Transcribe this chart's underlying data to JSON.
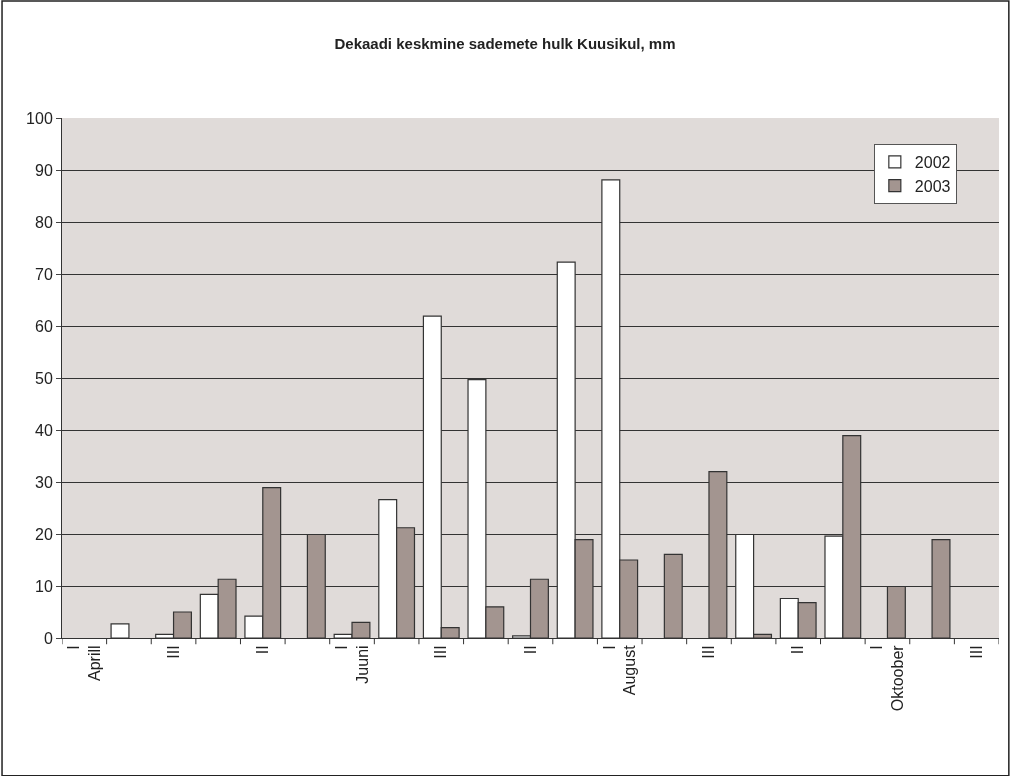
{
  "chart_data": {
    "type": "bar",
    "title": "Dekaadi keskmine sademete hulk Kuusikul, mm",
    "categories": [
      "I\nAprill",
      null,
      "III",
      null,
      "II",
      null,
      "I\nJuuni",
      null,
      "III",
      null,
      "II",
      null,
      "I\nAugust",
      null,
      "III",
      null,
      "II",
      null,
      "I\nOktoober",
      null,
      "III"
    ],
    "series": [
      {
        "name": "2002",
        "color": "#ffffff",
        "values": [
          null,
          2.7,
          0.7,
          8.4,
          4.2,
          null,
          0.7,
          26.6,
          61.9,
          49.7,
          0.4,
          72.3,
          88.1,
          null,
          null,
          19.9,
          7.6,
          19.6,
          null,
          null,
          null
        ]
      },
      {
        "name": "2003",
        "color": "#a39590",
        "values": [
          null,
          null,
          5.0,
          11.3,
          28.9,
          19.9,
          3.0,
          21.2,
          2.0,
          6.0,
          11.3,
          18.9,
          15.0,
          16.1,
          32.0,
          0.7,
          6.8,
          38.9,
          9.9,
          18.9,
          null
        ]
      }
    ],
    "ylim": [
      0,
      100
    ],
    "yticks": [
      0,
      10,
      20,
      30,
      40,
      50,
      60,
      70,
      80,
      90,
      100
    ],
    "grid": "y",
    "legend": "top right"
  }
}
